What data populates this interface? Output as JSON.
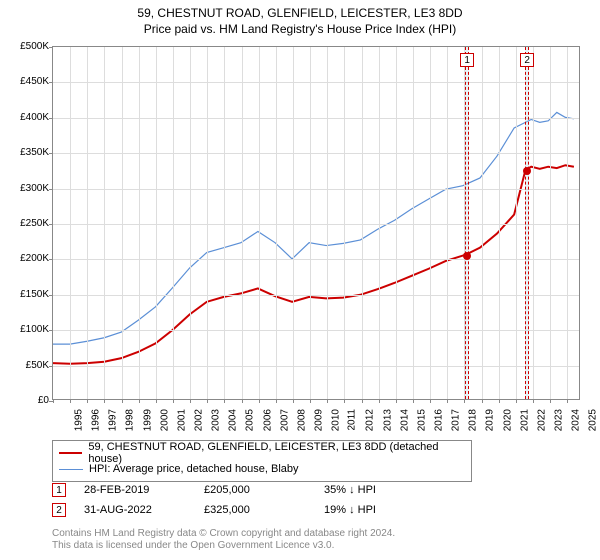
{
  "title": "59, CHESTNUT ROAD, GLENFIELD, LEICESTER, LE3 8DD",
  "subtitle": "Price paid vs. HM Land Registry's House Price Index (HPI)",
  "chart": {
    "type": "line",
    "x_range": [
      1995,
      2025.8
    ],
    "ylim": [
      0,
      500000
    ],
    "ytick_step": 50000,
    "y_ticks": [
      "£0",
      "£50K",
      "£100K",
      "£150K",
      "£200K",
      "£250K",
      "£300K",
      "£350K",
      "£400K",
      "£450K",
      "£500K"
    ],
    "x_ticks": [
      1995,
      1996,
      1997,
      1998,
      1999,
      2000,
      2001,
      2002,
      2003,
      2004,
      2005,
      2006,
      2007,
      2008,
      2009,
      2010,
      2011,
      2012,
      2013,
      2014,
      2015,
      2016,
      2017,
      2018,
      2019,
      2020,
      2021,
      2022,
      2023,
      2024,
      2025
    ],
    "background_color": "#ffffff",
    "grid_color": "#dddddd",
    "axis_color": "#888888",
    "title_fontsize": 12,
    "label_fontsize": 10,
    "series": [
      {
        "name": "property",
        "label": "59, CHESTNUT ROAD, GLENFIELD, LEICESTER, LE3 8DD (detached house)",
        "color": "#cc0000",
        "line_width": 2,
        "data": [
          [
            1995.0,
            51000
          ],
          [
            1996.0,
            50000
          ],
          [
            1997.0,
            51000
          ],
          [
            1998.0,
            53000
          ],
          [
            1999.0,
            58000
          ],
          [
            2000.0,
            67000
          ],
          [
            2001.0,
            79000
          ],
          [
            2002.0,
            98000
          ],
          [
            2003.0,
            120000
          ],
          [
            2004.0,
            138000
          ],
          [
            2005.0,
            145000
          ],
          [
            2006.0,
            150000
          ],
          [
            2007.0,
            157000
          ],
          [
            2008.0,
            146000
          ],
          [
            2009.0,
            138000
          ],
          [
            2010.0,
            145000
          ],
          [
            2011.0,
            143000
          ],
          [
            2012.0,
            144000
          ],
          [
            2013.0,
            148000
          ],
          [
            2014.0,
            156000
          ],
          [
            2015.0,
            165000
          ],
          [
            2016.0,
            175000
          ],
          [
            2017.0,
            185000
          ],
          [
            2018.0,
            196000
          ],
          [
            2019.16,
            205000
          ],
          [
            2020.0,
            215000
          ],
          [
            2021.0,
            235000
          ],
          [
            2022.0,
            262000
          ],
          [
            2022.66,
            325000
          ],
          [
            2023.0,
            330000
          ],
          [
            2023.5,
            327000
          ],
          [
            2024.0,
            330000
          ],
          [
            2024.5,
            328000
          ],
          [
            2025.0,
            332000
          ],
          [
            2025.5,
            330000
          ]
        ]
      },
      {
        "name": "hpi",
        "label": "HPI: Average price, detached house, Blaby",
        "color": "#5b8fd6",
        "line_width": 1.2,
        "data": [
          [
            1995.0,
            78000
          ],
          [
            1996.0,
            78000
          ],
          [
            1997.0,
            82000
          ],
          [
            1998.0,
            87000
          ],
          [
            1999.0,
            95000
          ],
          [
            2000.0,
            112000
          ],
          [
            2001.0,
            131000
          ],
          [
            2002.0,
            158000
          ],
          [
            2003.0,
            186000
          ],
          [
            2004.0,
            208000
          ],
          [
            2005.0,
            215000
          ],
          [
            2006.0,
            222000
          ],
          [
            2007.0,
            238000
          ],
          [
            2008.0,
            222000
          ],
          [
            2009.0,
            199000
          ],
          [
            2010.0,
            222000
          ],
          [
            2011.0,
            218000
          ],
          [
            2012.0,
            221000
          ],
          [
            2013.0,
            226000
          ],
          [
            2014.0,
            241000
          ],
          [
            2015.0,
            254000
          ],
          [
            2016.0,
            270000
          ],
          [
            2017.0,
            284000
          ],
          [
            2018.0,
            298000
          ],
          [
            2019.0,
            303000
          ],
          [
            2020.0,
            314000
          ],
          [
            2021.0,
            345000
          ],
          [
            2022.0,
            385000
          ],
          [
            2023.0,
            397000
          ],
          [
            2023.5,
            393000
          ],
          [
            2024.0,
            395000
          ],
          [
            2024.5,
            407000
          ],
          [
            2025.0,
            400000
          ],
          [
            2025.5,
            398000
          ]
        ]
      }
    ],
    "markers": [
      {
        "id": "1",
        "x": 2019.16,
        "y": 205000,
        "band_width_years": 0.25,
        "label_x": 2019.16
      },
      {
        "id": "2",
        "x": 2022.66,
        "y": 325000,
        "band_width_years": 0.25,
        "label_x": 2022.66
      }
    ]
  },
  "legend": {
    "items": [
      {
        "color": "#cc0000",
        "width": 2,
        "label": "59, CHESTNUT ROAD, GLENFIELD, LEICESTER, LE3 8DD (detached house)"
      },
      {
        "color": "#5b8fd6",
        "width": 1,
        "label": "HPI: Average price, detached house, Blaby"
      }
    ]
  },
  "footer_rows": [
    {
      "marker": "1",
      "date": "28-FEB-2019",
      "price": "£205,000",
      "vs_hpi": "35% ↓ HPI"
    },
    {
      "marker": "2",
      "date": "31-AUG-2022",
      "price": "£325,000",
      "vs_hpi": "19% ↓ HPI"
    }
  ],
  "attribution": "Contains HM Land Registry data © Crown copyright and database right 2024.\nThis data is licensed under the Open Government Licence v3.0."
}
